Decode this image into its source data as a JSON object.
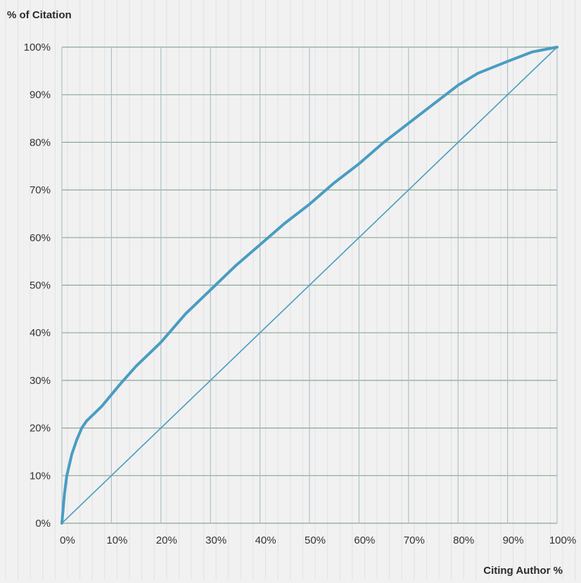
{
  "chart_data": {
    "type": "line",
    "title": "% of Citation",
    "xlabel": "Citing Author %",
    "ylabel": "% of Citation",
    "xlim": [
      0,
      100
    ],
    "ylim": [
      0,
      100
    ],
    "x_ticks": [
      0,
      10,
      20,
      30,
      40,
      50,
      60,
      70,
      80,
      90,
      100
    ],
    "y_ticks": [
      0,
      10,
      20,
      30,
      40,
      50,
      60,
      70,
      80,
      90,
      100
    ],
    "x_tick_labels": [
      "0%",
      "10%",
      "20%",
      "30%",
      "40%",
      "50%",
      "60%",
      "70%",
      "80%",
      "90%",
      "100%"
    ],
    "y_tick_labels": [
      "0%",
      "10%",
      "20%",
      "30%",
      "40%",
      "50%",
      "60%",
      "70%",
      "80%",
      "90%",
      "100%"
    ],
    "grid": true,
    "legend": "none",
    "series": [
      {
        "role": "curve",
        "x": [
          0,
          0.5,
          1,
          2,
          3,
          4,
          5,
          6,
          8,
          10,
          12,
          15,
          18,
          20,
          25,
          30,
          35,
          40,
          45,
          50,
          55,
          60,
          65,
          70,
          75,
          80,
          84,
          90,
          95,
          100
        ],
        "y": [
          0,
          6,
          10,
          14.5,
          17.5,
          20,
          21.5,
          22.5,
          24.5,
          27,
          29.5,
          33,
          36,
          38,
          44,
          49,
          54,
          58.5,
          63,
          67,
          71.5,
          75.5,
          80,
          84,
          88,
          92,
          94.5,
          97,
          99,
          100
        ],
        "color": "#4a9cc2"
      },
      {
        "role": "equality-line",
        "x": [
          0,
          100
        ],
        "y": [
          0,
          100
        ],
        "color": "#4a9cc2"
      }
    ]
  }
}
